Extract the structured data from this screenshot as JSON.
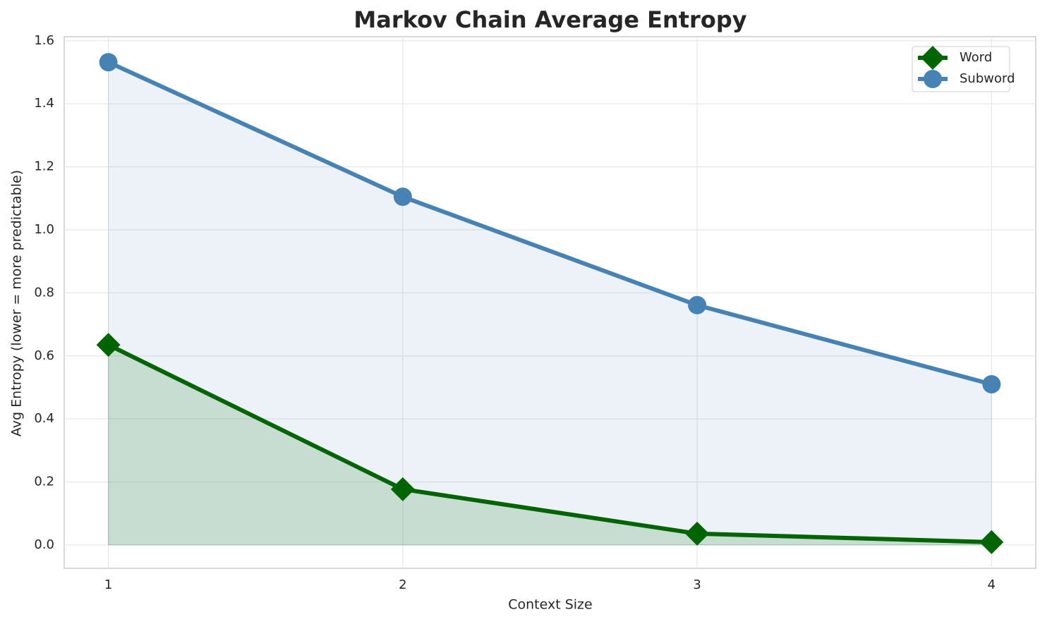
{
  "chart_data": {
    "type": "line",
    "title": "Markov Chain Average Entropy",
    "xlabel": "Context Size",
    "ylabel": "Avg Entropy (lower = more predictable)",
    "x": [
      1,
      2,
      3,
      4
    ],
    "series": [
      {
        "name": "Word",
        "color": "#006400",
        "marker": "diamond",
        "fill": true,
        "values": [
          0.635,
          0.177,
          0.036,
          0.009
        ]
      },
      {
        "name": "Subword",
        "color": "#4682b4",
        "marker": "circle",
        "fill": true,
        "values": [
          1.532,
          1.105,
          0.761,
          0.51
        ]
      }
    ],
    "xlim": [
      0.85,
      4.15
    ],
    "ylim": [
      -0.074,
      1.613
    ],
    "xticks": [
      1,
      2,
      3,
      4
    ],
    "yticks": [
      {
        "value": 0,
        "label": "0.0"
      },
      0.2,
      0.4,
      0.6,
      0.8,
      {
        "value": 1,
        "label": "1.0"
      },
      1.2,
      1.4,
      1.6
    ],
    "grid": true,
    "legend": "upper right"
  }
}
